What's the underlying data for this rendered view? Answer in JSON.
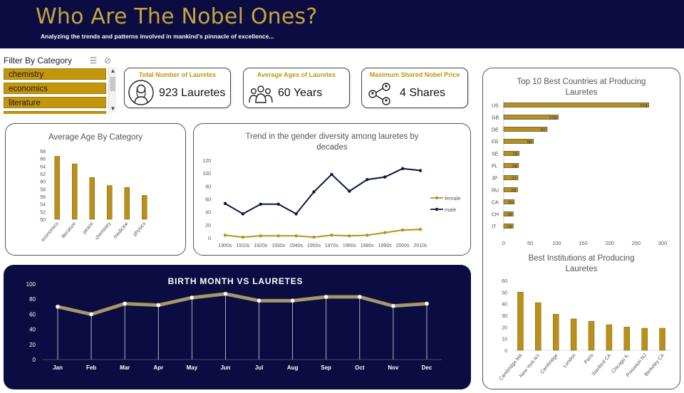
{
  "header": {
    "title": "Who Are The Nobel Ones?",
    "subtitle": "Analyzing the trends and patterns involved in mankind's pinnacle of excellence..."
  },
  "filter": {
    "label": "Filter By Category",
    "items": [
      "chemistry",
      "economics",
      "literature",
      ""
    ]
  },
  "kpis": [
    {
      "title": "Total Number of Lauretes",
      "value": "923 Lauretes",
      "icon": "person-icon"
    },
    {
      "title": "Average Ages of Lauretes",
      "value": "60  Years",
      "icon": "group-icon"
    },
    {
      "title": "Maximum Shared Nobel Price",
      "value": "4 Shares",
      "icon": "network-icon"
    }
  ],
  "colors": {
    "gold": "#b8901a",
    "navy": "#0b0c42",
    "male": "#0d1540",
    "female": "#b8901a",
    "month_line": "#8a9cae"
  },
  "chart_data": [
    {
      "id": "age_by_category",
      "type": "bar",
      "title": "Average Age By Category",
      "categories": [
        "economics",
        "literature",
        "peace",
        "chemistry",
        "medicine",
        "physics"
      ],
      "values": [
        66.6,
        64.6,
        61.0,
        58.9,
        58.4,
        56.3
      ],
      "ylim": [
        50,
        68
      ],
      "yticks": [
        50,
        52,
        54,
        56,
        58,
        60,
        62,
        64,
        66,
        68
      ]
    },
    {
      "id": "gender_trend",
      "type": "line",
      "title": "Trend in the gender diversity among  lauretes by decades",
      "categories": [
        "1900s",
        "1910s",
        "1920s",
        "1930s",
        "1940s",
        "1950s",
        "1970s",
        "1960s",
        "1980s",
        "1990s",
        "2000s",
        "2010s"
      ],
      "series": [
        {
          "name": "female",
          "values": [
            4,
            1,
            3,
            3,
            3,
            1,
            4,
            3,
            4,
            8,
            12,
            13
          ]
        },
        {
          "name": "male",
          "values": [
            53,
            37,
            52,
            52,
            37,
            71,
            98,
            72,
            90,
            94,
            107,
            104
          ]
        }
      ],
      "ylim": [
        0,
        120
      ],
      "yticks": [
        0,
        20,
        40,
        60,
        80,
        100,
        120
      ],
      "legend": "right"
    },
    {
      "id": "birth_month",
      "type": "line",
      "title": "BIRTH MONTH VS LAURETES",
      "categories": [
        "Jan",
        "Feb",
        "Mar",
        "Apr",
        "May",
        "Jun",
        "Jul",
        "Aug",
        "Sep",
        "Oct",
        "Nov",
        "Dec"
      ],
      "values": [
        70,
        60,
        74,
        72,
        82,
        87,
        78,
        78,
        83,
        83,
        71,
        74
      ],
      "ylim": [
        0,
        100
      ],
      "yticks": [
        0,
        20,
        40,
        60,
        80,
        100
      ]
    },
    {
      "id": "top_countries",
      "type": "bar",
      "orientation": "horizontal",
      "title": "Top 10 Best Countries at Producing Lauretes",
      "categories": [
        "US",
        "GB",
        "DE",
        "FR",
        "SE",
        "PL",
        "JP",
        "RU",
        "CA",
        "CH",
        "IT"
      ],
      "values": [
        274,
        103,
        82,
        56,
        29,
        28,
        27,
        26,
        20,
        18,
        18
      ],
      "xlim": [
        0,
        300
      ],
      "xticks": [
        0,
        50,
        100,
        150,
        200,
        250,
        300
      ]
    },
    {
      "id": "top_institutions",
      "type": "bar",
      "title": "Best Institutions at Producing Lauretes",
      "categories": [
        "Cambridge MA",
        "New York NY",
        "Cambridge",
        "London",
        "Paris",
        "Stanford CA",
        "Chicago IL",
        "Princeton NJ",
        "Berkeley CA"
      ],
      "values": [
        50,
        41,
        31,
        27,
        25,
        22,
        20,
        19,
        19
      ],
      "ylim": [
        0,
        60
      ],
      "yticks": [
        0,
        10,
        20,
        30,
        40,
        50,
        60
      ]
    }
  ]
}
